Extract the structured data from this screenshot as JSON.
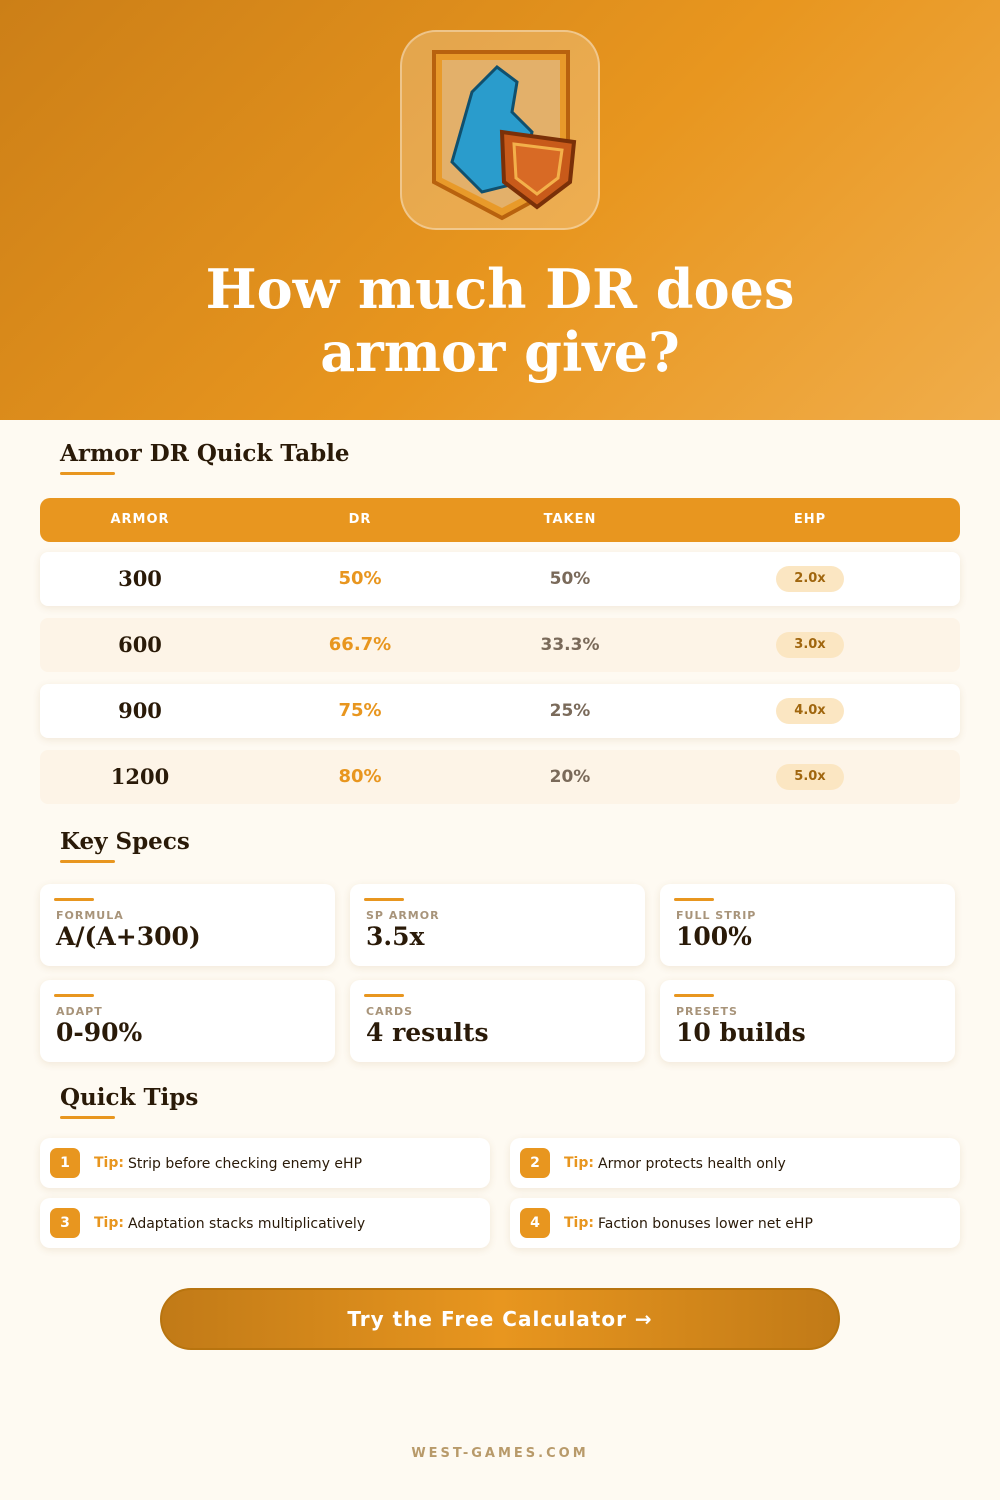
{
  "header": {
    "title": "How much DR does armor give?"
  },
  "table": {
    "title": "Armor DR Quick Table",
    "columns": [
      "ARMOR",
      "DR",
      "TAKEN",
      "EHP"
    ],
    "rows": [
      [
        "300",
        "50%",
        "50%",
        "2.0x"
      ],
      [
        "600",
        "66.7%",
        "33.3%",
        "3.0x"
      ],
      [
        "900",
        "75%",
        "25%",
        "4.0x"
      ],
      [
        "1200",
        "80%",
        "20%",
        "5.0x"
      ]
    ]
  },
  "specs": {
    "title": "Key Specs",
    "items": [
      {
        "label": "FORMULA",
        "value": "A/(A+300)"
      },
      {
        "label": "SP ARMOR",
        "value": "3.5x"
      },
      {
        "label": "FULL STRIP",
        "value": "100%"
      },
      {
        "label": "ADAPT",
        "value": "0-90%"
      },
      {
        "label": "CARDS",
        "value": "4 results"
      },
      {
        "label": "PRESETS",
        "value": "10 builds"
      }
    ]
  },
  "tips": {
    "title": "Quick Tips",
    "items": [
      {
        "number": "1",
        "prefix": "Tip:",
        "text": "Strip before checking enemy eHP"
      },
      {
        "number": "2",
        "prefix": "Tip:",
        "text": "Armor protects health only"
      },
      {
        "number": "3",
        "prefix": "Tip:",
        "text": "Adaptation stacks multiplicatively"
      },
      {
        "number": "4",
        "prefix": "Tip:",
        "text": "Faction bonuses lower net eHP"
      }
    ]
  },
  "cta": {
    "label": "Try the Free Calculator →"
  },
  "footer": {
    "text": "WEST-GAMES.COM"
  }
}
